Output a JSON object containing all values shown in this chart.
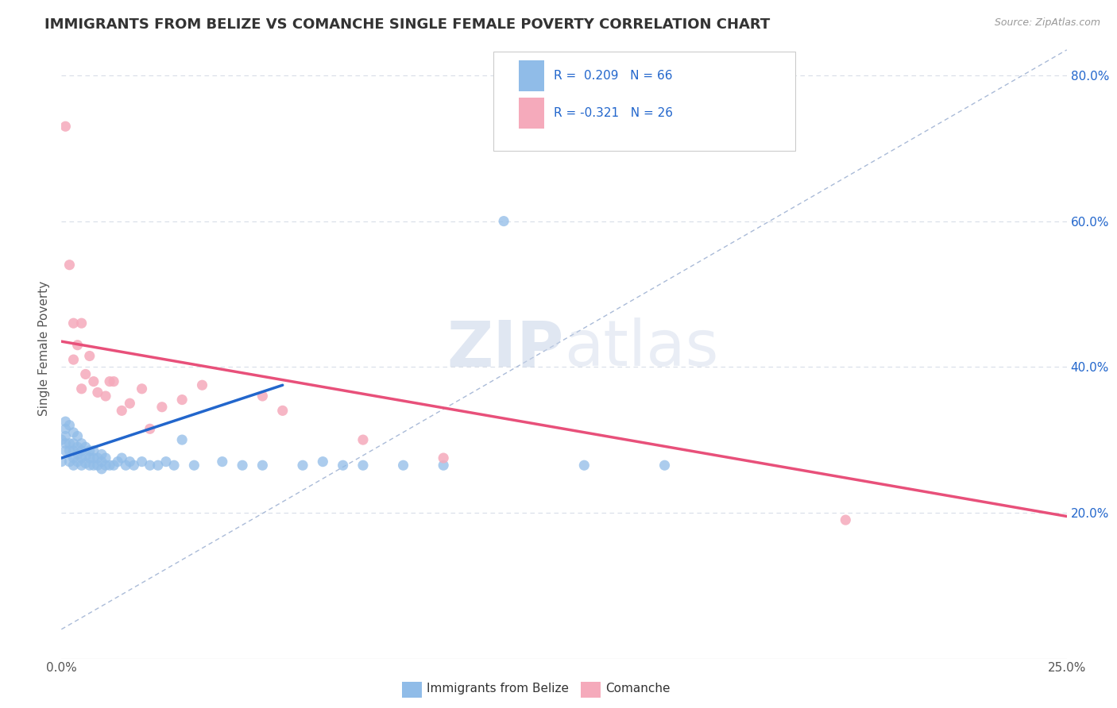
{
  "title": "IMMIGRANTS FROM BELIZE VS COMANCHE SINGLE FEMALE POVERTY CORRELATION CHART",
  "source_text": "Source: ZipAtlas.com",
  "ylabel": "Single Female Poverty",
  "xlim": [
    0.0,
    0.25
  ],
  "ylim": [
    0.0,
    0.85
  ],
  "xticks": [
    0.0,
    0.025,
    0.05,
    0.075,
    0.1,
    0.125,
    0.15,
    0.175,
    0.2,
    0.225,
    0.25
  ],
  "xtick_labels": [
    "0.0%",
    "",
    "",
    "",
    "",
    "",
    "",
    "",
    "",
    "",
    "25.0%"
  ],
  "ytick_positions": [
    0.0,
    0.2,
    0.4,
    0.6,
    0.8
  ],
  "ytick_labels": [
    "",
    "20.0%",
    "40.0%",
    "60.0%",
    "80.0%"
  ],
  "blue_color": "#90bce8",
  "pink_color": "#f5aabb",
  "line_blue": "#2266cc",
  "line_pink": "#e8507a",
  "dashed_line_color": "#aabbd8",
  "legend_text_color": "#2266cc",
  "title_color": "#333333",
  "grid_color": "#d8dde8",
  "background_color": "#ffffff",
  "blue_scatter_x": [
    0.0,
    0.0,
    0.001,
    0.001,
    0.001,
    0.001,
    0.001,
    0.002,
    0.002,
    0.002,
    0.002,
    0.003,
    0.003,
    0.003,
    0.003,
    0.003,
    0.004,
    0.004,
    0.004,
    0.004,
    0.005,
    0.005,
    0.005,
    0.005,
    0.006,
    0.006,
    0.006,
    0.007,
    0.007,
    0.007,
    0.008,
    0.008,
    0.008,
    0.009,
    0.009,
    0.01,
    0.01,
    0.01,
    0.011,
    0.011,
    0.012,
    0.013,
    0.014,
    0.015,
    0.016,
    0.017,
    0.018,
    0.02,
    0.022,
    0.024,
    0.026,
    0.028,
    0.03,
    0.033,
    0.04,
    0.045,
    0.05,
    0.06,
    0.065,
    0.07,
    0.075,
    0.085,
    0.095,
    0.11,
    0.13,
    0.15
  ],
  "blue_scatter_y": [
    0.27,
    0.3,
    0.285,
    0.295,
    0.305,
    0.315,
    0.325,
    0.27,
    0.285,
    0.295,
    0.32,
    0.265,
    0.275,
    0.285,
    0.295,
    0.31,
    0.27,
    0.28,
    0.29,
    0.305,
    0.265,
    0.275,
    0.285,
    0.295,
    0.268,
    0.278,
    0.29,
    0.265,
    0.275,
    0.285,
    0.265,
    0.275,
    0.285,
    0.265,
    0.275,
    0.26,
    0.27,
    0.28,
    0.265,
    0.275,
    0.265,
    0.265,
    0.27,
    0.275,
    0.265,
    0.27,
    0.265,
    0.27,
    0.265,
    0.265,
    0.27,
    0.265,
    0.3,
    0.265,
    0.27,
    0.265,
    0.265,
    0.265,
    0.27,
    0.265,
    0.265,
    0.265,
    0.265,
    0.6,
    0.265,
    0.265
  ],
  "pink_scatter_x": [
    0.001,
    0.002,
    0.003,
    0.003,
    0.004,
    0.005,
    0.005,
    0.006,
    0.007,
    0.008,
    0.009,
    0.011,
    0.012,
    0.013,
    0.015,
    0.017,
    0.02,
    0.022,
    0.025,
    0.03,
    0.035,
    0.05,
    0.055,
    0.075,
    0.095,
    0.195
  ],
  "pink_scatter_y": [
    0.73,
    0.54,
    0.46,
    0.41,
    0.43,
    0.37,
    0.46,
    0.39,
    0.415,
    0.38,
    0.365,
    0.36,
    0.38,
    0.38,
    0.34,
    0.35,
    0.37,
    0.315,
    0.345,
    0.355,
    0.375,
    0.36,
    0.34,
    0.3,
    0.275,
    0.19
  ],
  "blue_trend_x": [
    0.0,
    0.055
  ],
  "blue_trend_y": [
    0.275,
    0.375
  ],
  "pink_trend_x": [
    0.0,
    0.25
  ],
  "pink_trend_y": [
    0.435,
    0.195
  ],
  "dashed_trend_x": [
    0.0,
    0.25
  ],
  "dashed_trend_y": [
    0.04,
    0.835
  ]
}
